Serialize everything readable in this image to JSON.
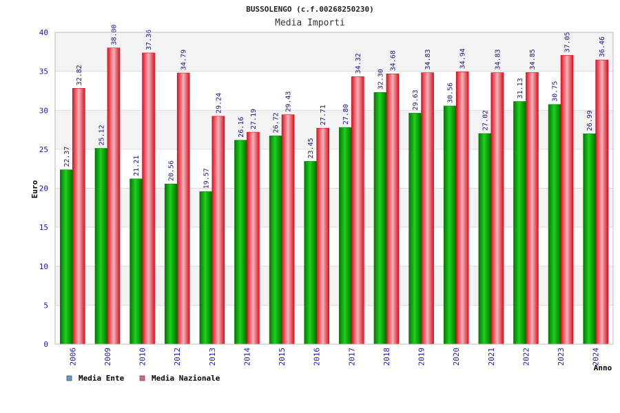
{
  "chart_data": {
    "type": "bar",
    "title": "BUSSOLENGO (c.f.00268250230)",
    "subtitle": "Media Importi",
    "xlabel": "Anno",
    "ylabel": "Euro",
    "ylim": [
      0,
      40
    ],
    "yticks": [
      0,
      5,
      10,
      15,
      20,
      25,
      30,
      35,
      40
    ],
    "ytick_labels": [
      "0",
      "5",
      "10",
      "15",
      "20",
      "25",
      "30",
      "35",
      "40"
    ],
    "grid": true,
    "legend_position": "bottom-left",
    "categories": [
      "2006",
      "2009",
      "2010",
      "2012",
      "2013",
      "2014",
      "2015",
      "2016",
      "2017",
      "2018",
      "2019",
      "2020",
      "2021",
      "2022",
      "2023",
      "2024"
    ],
    "series": [
      {
        "name": "Media Ente",
        "legend_color": "#5b9bd5",
        "bar_color": "#00b000",
        "values": [
          22.37,
          25.12,
          21.21,
          20.56,
          19.57,
          26.16,
          26.72,
          23.45,
          27.8,
          32.3,
          29.63,
          30.56,
          27.02,
          31.13,
          30.75,
          26.99
        ],
        "labels": [
          "22.37",
          "25.12",
          "21.21",
          "20.56",
          "19.57",
          "26.16",
          "26.72",
          "23.45",
          "27.80",
          "32.30",
          "29.63",
          "30.56",
          "27.02",
          "31.13",
          "30.75",
          "26.99"
        ]
      },
      {
        "name": "Media Nazionale",
        "legend_color": "#e06090",
        "bar_color": "#e8102a",
        "values": [
          32.82,
          38.0,
          37.36,
          34.79,
          29.24,
          27.19,
          29.43,
          27.71,
          34.32,
          34.68,
          34.83,
          34.94,
          34.83,
          34.85,
          37.05,
          36.46
        ],
        "labels": [
          "32.82",
          "38.00",
          "37.36",
          "34.79",
          "29.24",
          "27.19",
          "29.43",
          "27.71",
          "34.32",
          "34.68",
          "34.83",
          "34.94",
          "34.83",
          "34.85",
          "37.05",
          "36.46"
        ]
      }
    ]
  }
}
